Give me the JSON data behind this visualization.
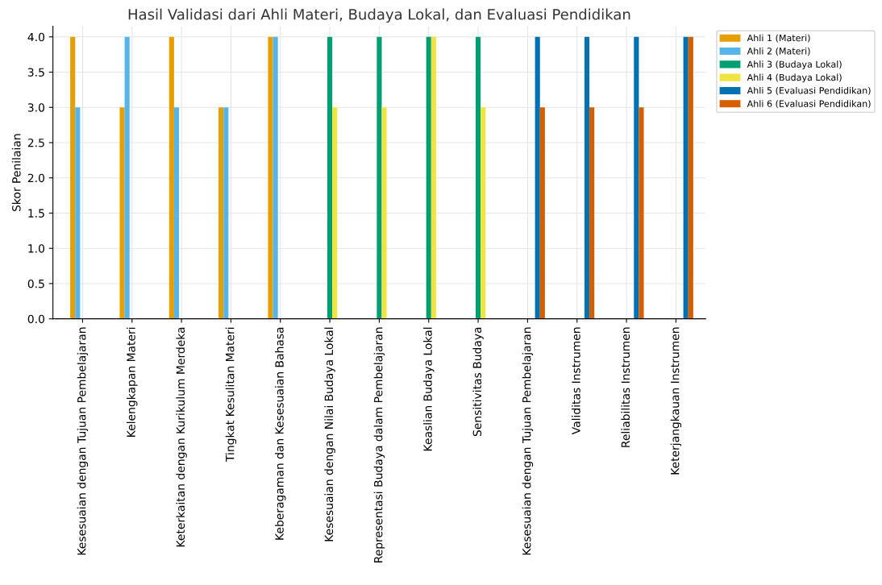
{
  "chart_data": {
    "type": "bar",
    "title": "Hasil Validasi dari Ahli Materi, Budaya Lokal, dan Evaluasi Pendidikan",
    "ylabel": "Skor Penilaian",
    "categories": [
      "Kesesuaian dengan Tujuan Pembelajaran",
      "Kelengkapan Materi",
      "Keterkaitan dengan Kurikulum Merdeka",
      "Tingkat Kesulitan Materi",
      "Keberagaman dan Kesesuaian Bahasa",
      "Kesesuaian dengan Nilai Budaya Lokal",
      "Representasi Budaya dalam Pembelajaran",
      "Keaslian Budaya Lokal",
      "Sensitivitas Budaya",
      "Kesesuaian dengan Tujuan Pembelajaran",
      "Validitas Instrumen",
      "Reliabilitas Instrumen",
      "Keterjangkauan Instrumen"
    ],
    "series": [
      {
        "name": "Ahli 1 (Materi)",
        "color": "#e69f00",
        "values": [
          4,
          3,
          4,
          3,
          4,
          null,
          null,
          null,
          null,
          null,
          null,
          null,
          null
        ]
      },
      {
        "name": "Ahli 2 (Materi)",
        "color": "#56b4e9",
        "values": [
          3,
          4,
          3,
          3,
          4,
          null,
          null,
          null,
          null,
          null,
          null,
          null,
          null
        ]
      },
      {
        "name": "Ahli 3 (Budaya Lokal)",
        "color": "#009e73",
        "values": [
          null,
          null,
          null,
          null,
          null,
          4,
          4,
          4,
          4,
          null,
          null,
          null,
          null
        ]
      },
      {
        "name": "Ahli 4 (Budaya Lokal)",
        "color": "#f0e442",
        "values": [
          null,
          null,
          null,
          null,
          null,
          3,
          3,
          4,
          3,
          null,
          null,
          null,
          null
        ]
      },
      {
        "name": "Ahli 5 (Evaluasi Pendidikan)",
        "color": "#0072b2",
        "values": [
          null,
          null,
          null,
          null,
          null,
          null,
          null,
          null,
          null,
          4,
          4,
          4,
          4
        ]
      },
      {
        "name": "Ahli 6 (Evaluasi Pendidikan)",
        "color": "#d55e00",
        "values": [
          null,
          null,
          null,
          null,
          null,
          null,
          null,
          null,
          null,
          3,
          3,
          3,
          4
        ]
      }
    ],
    "ylim": [
      0,
      4.15
    ],
    "yticks": [
      {
        "value": 0,
        "label": "0.0"
      },
      {
        "value": 0.5,
        "label": "0.5"
      },
      {
        "value": 1,
        "label": "1.0"
      },
      {
        "value": 1.5,
        "label": "1.5"
      },
      {
        "value": 2,
        "label": "2.0"
      },
      {
        "value": 2.5,
        "label": "2.5"
      },
      {
        "value": 3,
        "label": "3.0"
      },
      {
        "value": 3.5,
        "label": "3.5"
      },
      {
        "value": 4,
        "label": "4.0"
      }
    ],
    "grid": true,
    "legend": "right"
  }
}
